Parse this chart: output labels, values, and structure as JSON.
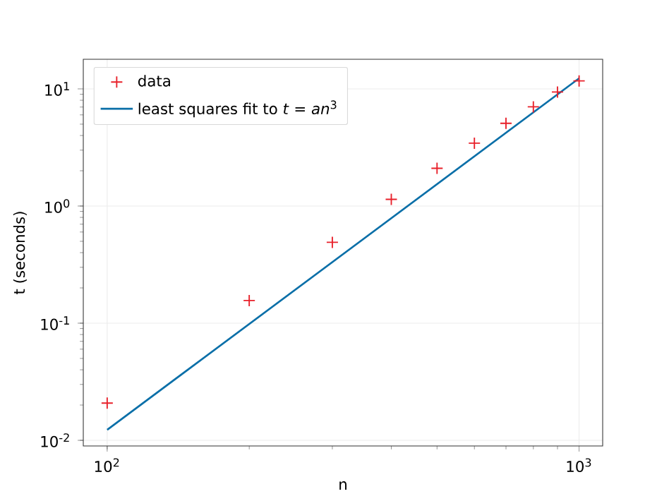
{
  "chart_data": {
    "type": "scatter",
    "xlabel": "n",
    "ylabel": "t (seconds)",
    "log": "xy",
    "grid": true,
    "legend": "top left",
    "xlim": [
      89,
      1122
    ],
    "ylim": [
      0.00895,
      17.9
    ],
    "xticks": [
      {
        "value": 100,
        "label": "10$^{2}$"
      },
      {
        "value": 1000,
        "label": "10$^{3}$"
      }
    ],
    "yticks": [
      {
        "value": 0.01,
        "label": "10$^{-2}$"
      },
      {
        "value": 0.1,
        "label": "10$^{-1}$"
      },
      {
        "value": 1,
        "label": "10$^{0}$"
      },
      {
        "value": 10,
        "label": "10$^{1}$"
      }
    ],
    "series": [
      {
        "name": "data",
        "marker": "cross",
        "color": "#e8202a",
        "x": [
          100,
          200,
          300,
          400,
          500,
          600,
          700,
          800,
          900,
          1000
        ],
        "values": [
          0.0208,
          0.156,
          0.49,
          1.14,
          2.1,
          3.44,
          5.08,
          7.03,
          9.4,
          11.7
        ]
      },
      {
        "name": "least squares fit to *t* = *an*$^{3}$",
        "type": "line",
        "marker": "none",
        "line_style": "solid",
        "color": "#0a6fa8",
        "x": [
          100,
          1000
        ],
        "values": [
          0.0123,
          12.3
        ]
      }
    ]
  }
}
